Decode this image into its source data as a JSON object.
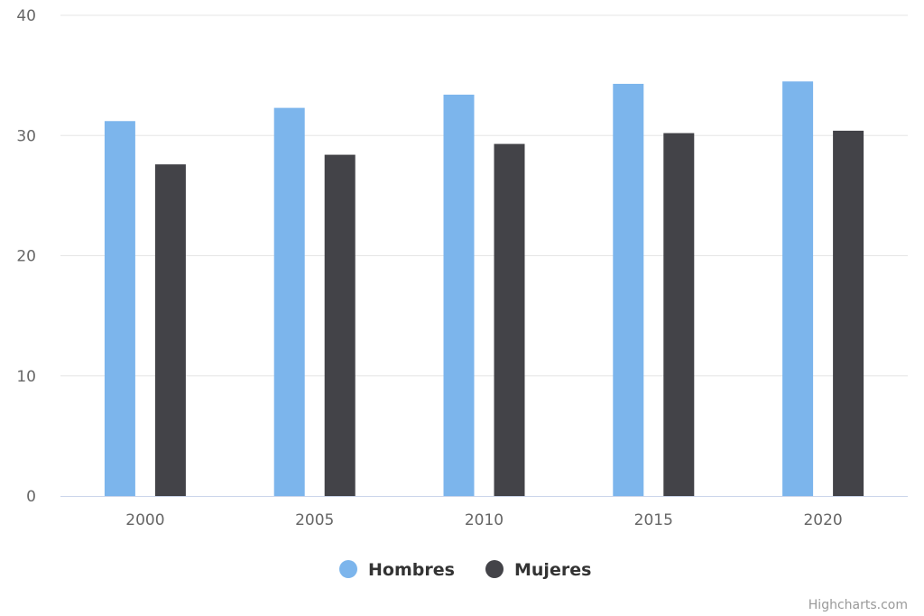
{
  "chart_data": {
    "type": "bar",
    "categories": [
      "2000",
      "2005",
      "2010",
      "2015",
      "2020"
    ],
    "series": [
      {
        "name": "Hombres",
        "values": [
          31.2,
          32.3,
          33.4,
          34.3,
          34.5
        ]
      },
      {
        "name": "Mujeres",
        "values": [
          27.6,
          28.4,
          29.3,
          30.2,
          30.4
        ]
      }
    ],
    "ylim": [
      0,
      40
    ],
    "yticks": [
      "0",
      "10",
      "20",
      "30",
      "40"
    ],
    "grid": true,
    "legend_position": "bottom-center"
  },
  "colors": {
    "Hombres": "#7cb5ec",
    "Mujeres": "#434348",
    "grid": "#e6e6e6",
    "axis": "#ccd6eb"
  },
  "credit": "Highcharts.com"
}
